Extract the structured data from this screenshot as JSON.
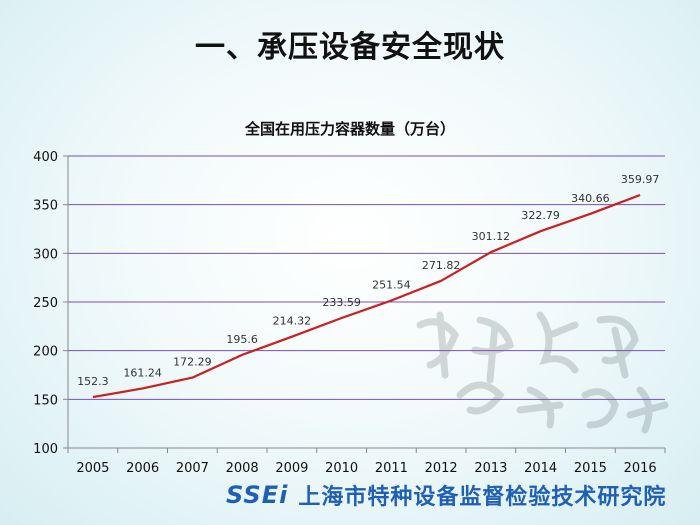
{
  "slide": {
    "title": "一、承压设备安全现状"
  },
  "footer": {
    "logo_text": "SSEi",
    "org_name": "上海市特种设备监督检验技术研究院"
  },
  "colors": {
    "line": "#cc1f1f",
    "grid": "#7a4fb3",
    "axis": "#888888"
  },
  "chart_data": {
    "type": "line",
    "title": "全国在用压力容器数量（万台）",
    "x": [
      "2005",
      "2006",
      "2007",
      "2008",
      "2009",
      "2010",
      "2011",
      "2012",
      "2013",
      "2014",
      "2015",
      "2016"
    ],
    "series": [
      {
        "values": [
          152.3,
          161.24,
          172.29,
          195.6,
          214.32,
          233.59,
          251.54,
          271.82,
          301.12,
          322.79,
          340.66,
          359.97
        ],
        "labels": [
          "152.3",
          "161.24",
          "172.29",
          "195.6",
          "214.32",
          "233.59",
          "251.54",
          "271.82",
          "301.12",
          "322.79",
          "340.66",
          "359.97"
        ]
      }
    ],
    "ylim": [
      100,
      400
    ],
    "yticks": [
      100,
      150,
      200,
      250,
      300,
      350,
      400
    ],
    "grid": true,
    "xlabel": "",
    "ylabel": ""
  }
}
